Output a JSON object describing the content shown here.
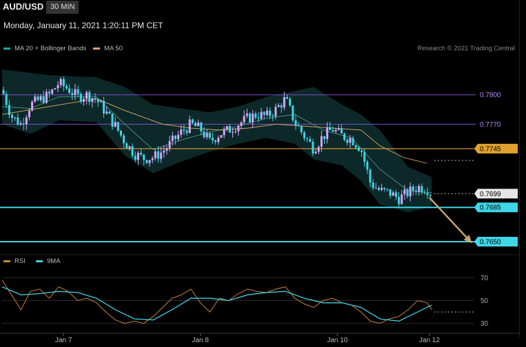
{
  "header": {
    "symbol": "AUD/USD",
    "timeframe": "30 MIN",
    "datetime": "Monday, January 11, 2021 1:20:11 PM CET"
  },
  "legend": [
    {
      "label": "MA 20 + Bollinger Bands",
      "color": "#1aa6a6"
    },
    {
      "label": "MA 50",
      "color": "#e0a060"
    }
  ],
  "credit": "Research © 2021 Trading Central",
  "rsi_legend": [
    {
      "label": "RSI",
      "color": "#c8853a"
    },
    {
      "label": "9MA",
      "color": "#3fd0e0"
    }
  ],
  "colors": {
    "up": "#d7a6ff",
    "down": "#3fd6e6",
    "bands": "#0d2828",
    "ma50": "#c9a15a",
    "ma20": "#4a8a80",
    "purple_line": "#7a4fd0",
    "orange_line": "#e0a22e",
    "cyan_line": "#3fd6e6"
  },
  "chart_data": [
    {
      "type": "candlestick",
      "title": "AUD/USD",
      "ylim": [
        0.7638,
        0.7835
      ],
      "xlim": [
        0,
        1
      ],
      "x_ticks": [
        {
          "label": "Jan 7",
          "x": 0.13
        },
        {
          "label": "Jan 8",
          "x": 0.42
        },
        {
          "label": "Jan 10",
          "x": 0.71
        },
        {
          "label": "Jan 12",
          "x": 0.905
        }
      ],
      "levels": [
        {
          "value": 0.78,
          "label": "0.7800",
          "style": "purple",
          "extends": "full"
        },
        {
          "value": 0.777,
          "label": "0.7770",
          "style": "purple",
          "extends": "full"
        },
        {
          "value": 0.7745,
          "label": "0.7745",
          "style": "orange-box",
          "extends": "full"
        },
        {
          "value": 0.7699,
          "label": "0.7699",
          "style": "current-price",
          "extends": "short"
        },
        {
          "value": 0.7685,
          "label": "0.7685",
          "style": "cyan-box",
          "extends": "full"
        },
        {
          "value": 0.765,
          "label": "0.7650",
          "style": "cyan-box",
          "extends": "full"
        }
      ],
      "dotted_level": 0.7733,
      "forecast_arrow": {
        "from": {
          "x": 0.905,
          "y": 0.7695
        },
        "to": {
          "x": 0.995,
          "y": 0.765
        }
      },
      "price_path": [
        [
          0.0,
          0.7805
        ],
        [
          0.02,
          0.7778
        ],
        [
          0.04,
          0.777
        ],
        [
          0.06,
          0.779
        ],
        [
          0.08,
          0.7795
        ],
        [
          0.1,
          0.78
        ],
        [
          0.12,
          0.7812
        ],
        [
          0.14,
          0.7806
        ],
        [
          0.16,
          0.7798
        ],
        [
          0.18,
          0.78
        ],
        [
          0.2,
          0.7795
        ],
        [
          0.22,
          0.7782
        ],
        [
          0.24,
          0.7768
        ],
        [
          0.26,
          0.7752
        ],
        [
          0.28,
          0.774
        ],
        [
          0.3,
          0.7735
        ],
        [
          0.32,
          0.7736
        ],
        [
          0.34,
          0.7742
        ],
        [
          0.36,
          0.7752
        ],
        [
          0.38,
          0.7762
        ],
        [
          0.4,
          0.777
        ],
        [
          0.42,
          0.7765
        ],
        [
          0.44,
          0.7752
        ],
        [
          0.46,
          0.776
        ],
        [
          0.48,
          0.7764
        ],
        [
          0.5,
          0.777
        ],
        [
          0.52,
          0.7776
        ],
        [
          0.54,
          0.778
        ],
        [
          0.56,
          0.7778
        ],
        [
          0.58,
          0.7785
        ],
        [
          0.6,
          0.7796
        ],
        [
          0.62,
          0.7772
        ],
        [
          0.64,
          0.7758
        ],
        [
          0.66,
          0.7745
        ],
        [
          0.68,
          0.7758
        ],
        [
          0.7,
          0.7765
        ],
        [
          0.72,
          0.7758
        ],
        [
          0.74,
          0.7755
        ],
        [
          0.76,
          0.7745
        ],
        [
          0.78,
          0.771
        ],
        [
          0.8,
          0.7702
        ],
        [
          0.82,
          0.77
        ],
        [
          0.84,
          0.7694
        ],
        [
          0.86,
          0.77
        ],
        [
          0.88,
          0.7706
        ],
        [
          0.9,
          0.7704
        ],
        [
          0.91,
          0.7699
        ]
      ],
      "ma50_path": [
        [
          0.0,
          0.778
        ],
        [
          0.1,
          0.7788
        ],
        [
          0.2,
          0.7796
        ],
        [
          0.26,
          0.7784
        ],
        [
          0.34,
          0.777
        ],
        [
          0.4,
          0.7766
        ],
        [
          0.46,
          0.7764
        ],
        [
          0.52,
          0.7766
        ],
        [
          0.58,
          0.777
        ],
        [
          0.64,
          0.7768
        ],
        [
          0.7,
          0.7766
        ],
        [
          0.76,
          0.7764
        ],
        [
          0.8,
          0.7748
        ],
        [
          0.85,
          0.7736
        ],
        [
          0.9,
          0.773
        ]
      ],
      "ma20_path": [
        [
          0.0,
          0.7788
        ],
        [
          0.06,
          0.7786
        ],
        [
          0.12,
          0.7798
        ],
        [
          0.2,
          0.7798
        ],
        [
          0.26,
          0.777
        ],
        [
          0.32,
          0.7744
        ],
        [
          0.38,
          0.7754
        ],
        [
          0.44,
          0.7762
        ],
        [
          0.5,
          0.7768
        ],
        [
          0.56,
          0.7776
        ],
        [
          0.62,
          0.778
        ],
        [
          0.68,
          0.7764
        ],
        [
          0.74,
          0.7756
        ],
        [
          0.8,
          0.7724
        ],
        [
          0.86,
          0.7702
        ],
        [
          0.91,
          0.77
        ]
      ],
      "band_upper": [
        [
          0.0,
          0.7826
        ],
        [
          0.1,
          0.782
        ],
        [
          0.2,
          0.7818
        ],
        [
          0.26,
          0.7808
        ],
        [
          0.32,
          0.779
        ],
        [
          0.38,
          0.7786
        ],
        [
          0.44,
          0.7782
        ],
        [
          0.5,
          0.7788
        ],
        [
          0.56,
          0.7798
        ],
        [
          0.62,
          0.7804
        ],
        [
          0.66,
          0.7808
        ],
        [
          0.72,
          0.779
        ],
        [
          0.76,
          0.778
        ],
        [
          0.8,
          0.7764
        ],
        [
          0.86,
          0.7726
        ],
        [
          0.91,
          0.7716
        ]
      ],
      "band_lower": [
        [
          0.0,
          0.777
        ],
        [
          0.06,
          0.776
        ],
        [
          0.12,
          0.7774
        ],
        [
          0.2,
          0.7772
        ],
        [
          0.26,
          0.7738
        ],
        [
          0.32,
          0.772
        ],
        [
          0.38,
          0.7732
        ],
        [
          0.44,
          0.7742
        ],
        [
          0.5,
          0.775
        ],
        [
          0.56,
          0.7756
        ],
        [
          0.62,
          0.775
        ],
        [
          0.66,
          0.7734
        ],
        [
          0.72,
          0.7728
        ],
        [
          0.76,
          0.7712
        ],
        [
          0.8,
          0.7688
        ],
        [
          0.86,
          0.768
        ],
        [
          0.91,
          0.7686
        ]
      ]
    },
    {
      "type": "line",
      "title": "RSI",
      "ylim": [
        25,
        75
      ],
      "y_ticks": [
        70,
        50,
        30
      ],
      "dotted_level": 40,
      "series": [
        {
          "name": "RSI",
          "points": [
            [
              0.0,
              68
            ],
            [
              0.02,
              55
            ],
            [
              0.04,
              42
            ],
            [
              0.06,
              58
            ],
            [
              0.08,
              60
            ],
            [
              0.1,
              52
            ],
            [
              0.12,
              62
            ],
            [
              0.14,
              58
            ],
            [
              0.16,
              50
            ],
            [
              0.18,
              52
            ],
            [
              0.2,
              48
            ],
            [
              0.22,
              40
            ],
            [
              0.24,
              33
            ],
            [
              0.26,
              30
            ],
            [
              0.28,
              32
            ],
            [
              0.3,
              30
            ],
            [
              0.32,
              36
            ],
            [
              0.34,
              44
            ],
            [
              0.36,
              52
            ],
            [
              0.38,
              55
            ],
            [
              0.4,
              60
            ],
            [
              0.42,
              48
            ],
            [
              0.44,
              40
            ],
            [
              0.46,
              52
            ],
            [
              0.48,
              50
            ],
            [
              0.5,
              56
            ],
            [
              0.52,
              60
            ],
            [
              0.54,
              58
            ],
            [
              0.56,
              57
            ],
            [
              0.58,
              60
            ],
            [
              0.6,
              62
            ],
            [
              0.62,
              52
            ],
            [
              0.64,
              47
            ],
            [
              0.66,
              44
            ],
            [
              0.68,
              50
            ],
            [
              0.7,
              52
            ],
            [
              0.72,
              48
            ],
            [
              0.74,
              46
            ],
            [
              0.76,
              40
            ],
            [
              0.78,
              32
            ],
            [
              0.8,
              30
            ],
            [
              0.82,
              34
            ],
            [
              0.84,
              36
            ],
            [
              0.86,
              42
            ],
            [
              0.88,
              50
            ],
            [
              0.9,
              48
            ],
            [
              0.91,
              42
            ]
          ]
        },
        {
          "name": "9MA",
          "points": [
            [
              0.0,
              62
            ],
            [
              0.04,
              55
            ],
            [
              0.08,
              56
            ],
            [
              0.12,
              58
            ],
            [
              0.16,
              57
            ],
            [
              0.2,
              52
            ],
            [
              0.24,
              42
            ],
            [
              0.28,
              34
            ],
            [
              0.32,
              33
            ],
            [
              0.36,
              42
            ],
            [
              0.4,
              52
            ],
            [
              0.44,
              52
            ],
            [
              0.48,
              50
            ],
            [
              0.52,
              55
            ],
            [
              0.56,
              57
            ],
            [
              0.6,
              58
            ],
            [
              0.64,
              52
            ],
            [
              0.68,
              48
            ],
            [
              0.72,
              48
            ],
            [
              0.76,
              44
            ],
            [
              0.8,
              34
            ],
            [
              0.84,
              32
            ],
            [
              0.88,
              40
            ],
            [
              0.91,
              46
            ]
          ]
        }
      ]
    }
  ]
}
